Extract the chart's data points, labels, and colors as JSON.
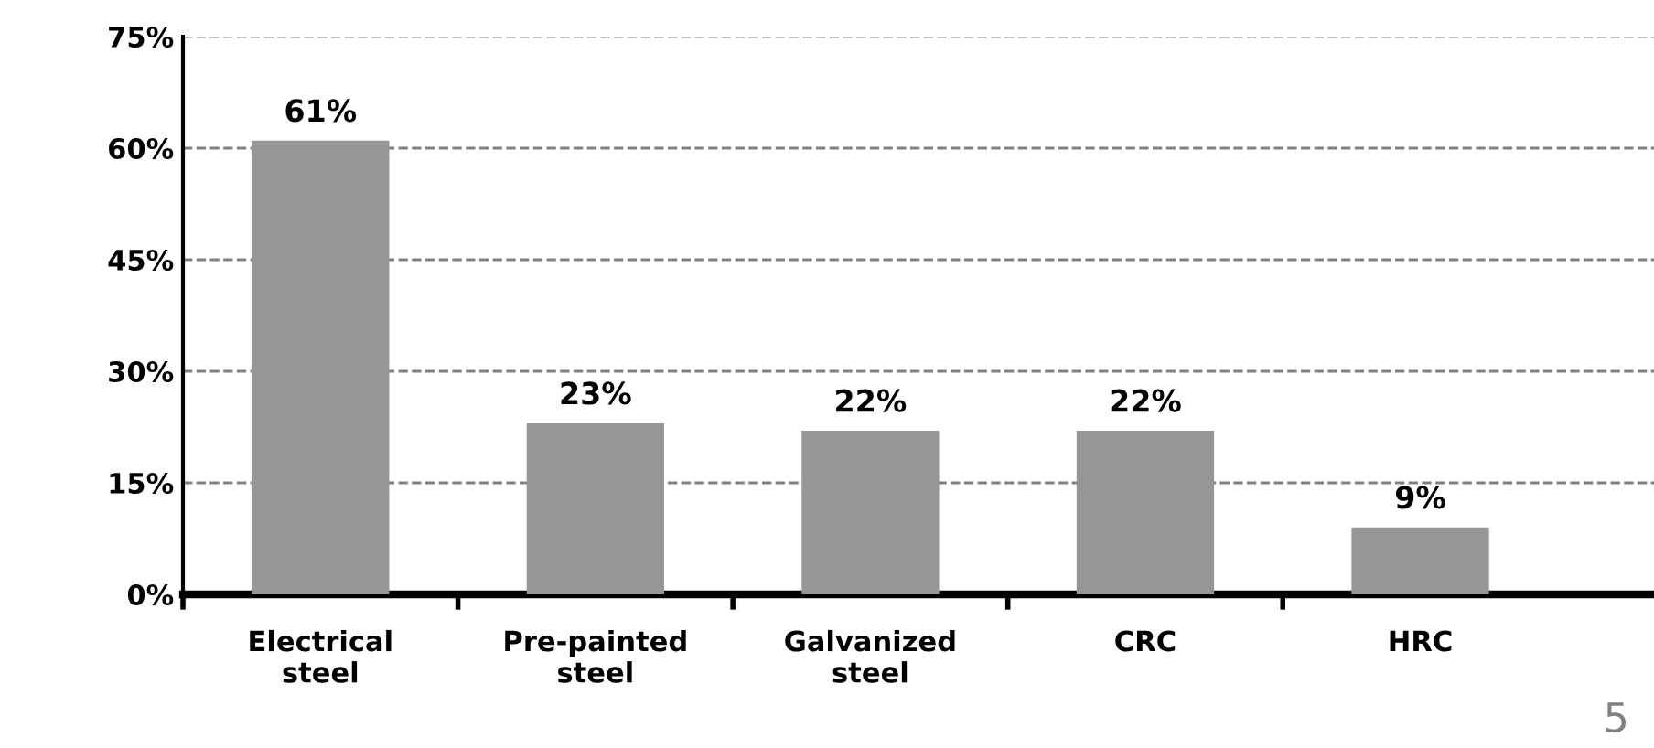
{
  "chart_data": {
    "type": "bar",
    "categories": [
      "Electrical\nsteel",
      "Pre-painted\nsteel",
      "Galvanized\nsteel",
      "CRC",
      "HRC"
    ],
    "values": [
      61,
      23,
      22,
      22,
      9
    ],
    "value_labels": [
      "61%",
      "23%",
      "22%",
      "22%",
      "9%"
    ],
    "color": "#969696",
    "ylim": [
      0,
      75
    ],
    "yticks": [
      {
        "value": 0,
        "label": "0%"
      },
      {
        "value": 15,
        "label": "15%"
      },
      {
        "value": 30,
        "label": "30%"
      },
      {
        "value": 45,
        "label": "45%"
      },
      {
        "value": 60,
        "label": "60%"
      },
      {
        "value": 75,
        "label": "75%"
      }
    ],
    "grid": "y",
    "line_style": "dashed",
    "annotations": [
      "5"
    ]
  }
}
